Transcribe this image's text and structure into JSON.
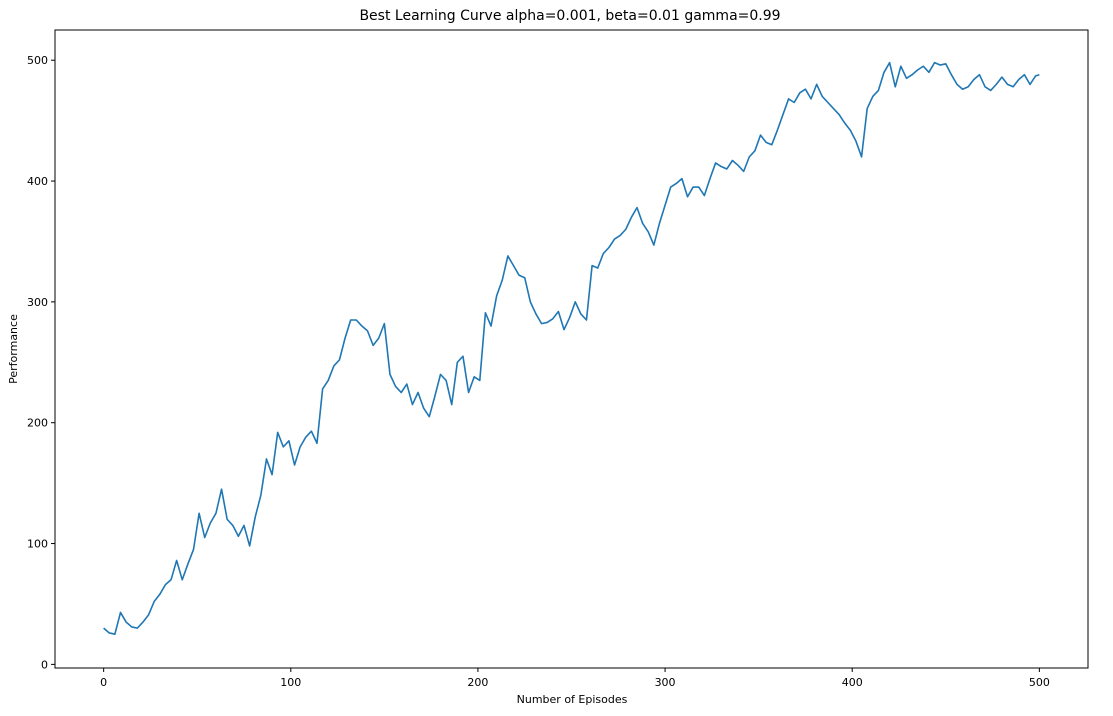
{
  "chart_data": {
    "type": "line",
    "title": "Best Learning Curve alpha=0.001, beta=0.01 gamma=0.99",
    "xlabel": "Number of Episodes",
    "ylabel": "Performance",
    "xlim": [
      -26,
      526
    ],
    "ylim": [
      -3,
      525
    ],
    "xticks": [
      0,
      100,
      200,
      300,
      400,
      500
    ],
    "yticks": [
      0,
      100,
      200,
      300,
      400,
      500
    ],
    "grid": false,
    "line_color": "#1f77b4",
    "series": [
      {
        "x": [
          0,
          3,
          6,
          9,
          12,
          15,
          18,
          21,
          24,
          27,
          30,
          33,
          36,
          39,
          42,
          45,
          48,
          51,
          54,
          57,
          60,
          63,
          66,
          69,
          72,
          75,
          78,
          81,
          84,
          87,
          90,
          93,
          96,
          99,
          102,
          105,
          108,
          111,
          114,
          117,
          120,
          123,
          126,
          129,
          132,
          135,
          138,
          141,
          144,
          147,
          150,
          153,
          156,
          159,
          162,
          165,
          168,
          171,
          174,
          177,
          180,
          183,
          186,
          189,
          192,
          195,
          198,
          201,
          204,
          207,
          210,
          213,
          216,
          219,
          222,
          225,
          228,
          231,
          234,
          237,
          240,
          243,
          246,
          249,
          252,
          255,
          258,
          261,
          264,
          267,
          270,
          273,
          276,
          279,
          282,
          285,
          288,
          291,
          294,
          297,
          300,
          303,
          306,
          309,
          312,
          315,
          318,
          321,
          324,
          327,
          330,
          333,
          336,
          339,
          342,
          345,
          348,
          351,
          354,
          357,
          360,
          363,
          366,
          369,
          372,
          375,
          378,
          381,
          384,
          387,
          390,
          393,
          396,
          399,
          402,
          405,
          408,
          411,
          414,
          417,
          420,
          423,
          426,
          429,
          432,
          435,
          438,
          441,
          444,
          447,
          450,
          453,
          456,
          459,
          462,
          465,
          468,
          471,
          474,
          477,
          480,
          483,
          486,
          489,
          492,
          495,
          498,
          500
        ],
        "y": [
          30,
          26,
          25,
          43,
          35,
          31,
          30,
          35,
          41,
          52,
          58,
          66,
          70,
          86,
          70,
          83,
          95,
          125,
          105,
          117,
          125,
          145,
          120,
          115,
          106,
          115,
          98,
          122,
          140,
          170,
          157,
          192,
          180,
          185,
          165,
          180,
          188,
          193,
          183,
          228,
          235,
          247,
          252,
          270,
          285,
          285,
          280,
          276,
          264,
          270,
          282,
          240,
          230,
          225,
          232,
          215,
          225,
          212,
          205,
          222,
          240,
          235,
          215,
          250,
          255,
          225,
          238,
          235,
          291,
          280,
          305,
          318,
          338,
          330,
          322,
          320,
          300,
          290,
          282,
          283,
          286,
          292,
          277,
          287,
          300,
          290,
          285,
          330,
          328,
          340,
          345,
          352,
          355,
          360,
          370,
          378,
          365,
          358,
          347,
          365,
          380,
          395,
          398,
          402,
          387,
          395,
          395,
          388,
          402,
          415,
          412,
          410,
          417,
          413,
          408,
          420,
          425,
          438,
          432,
          430,
          442,
          455,
          468,
          465,
          473,
          476,
          468,
          480,
          470,
          465,
          460,
          455,
          448,
          442,
          433,
          420,
          460,
          470,
          475,
          490,
          498,
          478,
          495,
          485,
          488,
          492,
          495,
          490,
          498,
          496,
          497,
          488,
          480,
          476,
          478,
          484,
          488,
          478,
          475,
          480,
          486,
          480,
          478,
          484,
          488,
          480,
          487,
          488
        ]
      }
    ]
  }
}
